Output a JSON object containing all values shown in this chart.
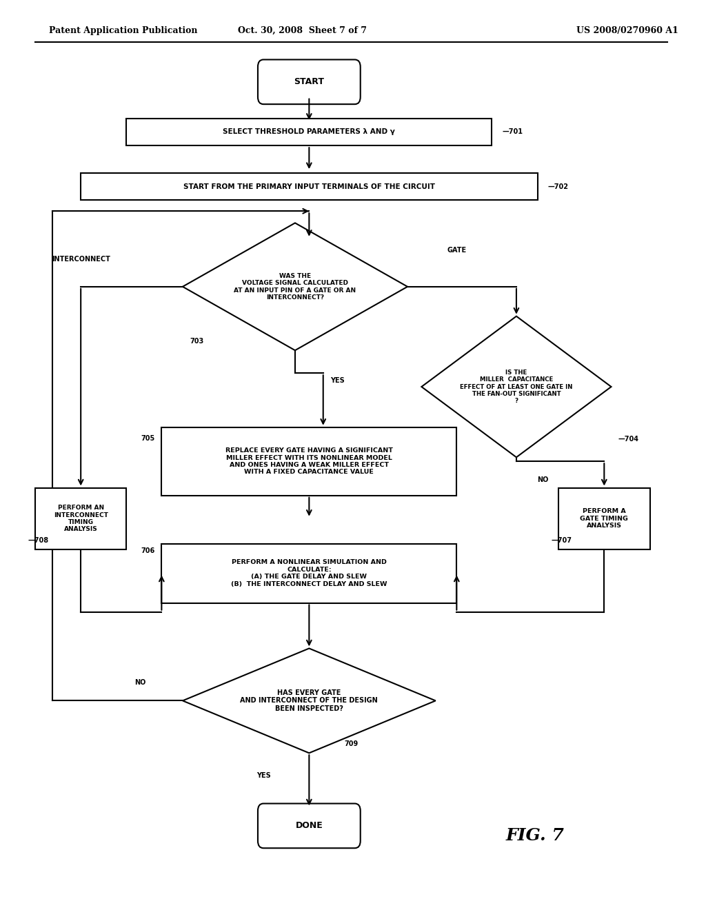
{
  "bg_color": "#ffffff",
  "header_left": "Patent Application Publication",
  "header_mid": "Oct. 30, 2008  Sheet 7 of 7",
  "header_right": "US 2008/0270960 A1",
  "fig_label": "FIG. 7",
  "lw": 1.5
}
